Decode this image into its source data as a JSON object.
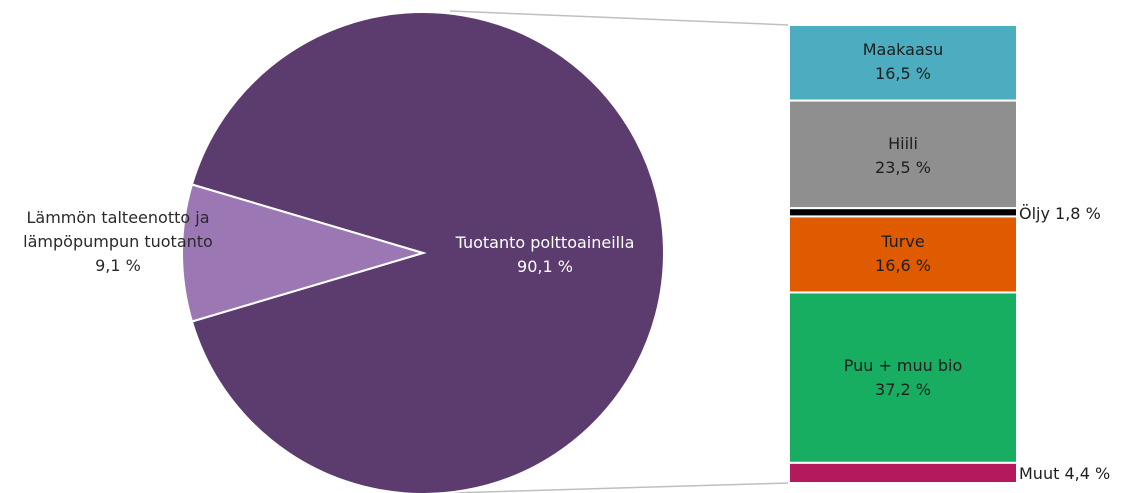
{
  "chart_data": [
    {
      "type": "pie",
      "slices": [
        {
          "label": "Tuotanto polttoaineilla",
          "value_text": "90,1 %",
          "value": 90.1,
          "color": "#5c3c6e"
        },
        {
          "label": "Lämmön talteenotto ja lämpöpumpun tuotanto",
          "label_lines": [
            "Lämmön talteenotto ja",
            "lämpöpumpun tuotanto"
          ],
          "value_text": "9,1 %",
          "value": 9.1,
          "color": "#9b78b3"
        }
      ]
    },
    {
      "type": "bar",
      "orientation": "stacked-vertical",
      "segments": [
        {
          "label": "Maakaasu",
          "value_text": "16,5 %",
          "value": 16.5,
          "color": "#4badbf"
        },
        {
          "label": "Hiili",
          "value_text": "23,5 %",
          "value": 23.5,
          "color": "#8f8f8f"
        },
        {
          "label": "Öljy",
          "value_text": "1,8 %",
          "value": 1.8,
          "color": "#000000",
          "outside_label": "Öljy 1,8 %"
        },
        {
          "label": "Turve",
          "value_text": "16,6 %",
          "value": 16.6,
          "color": "#e05a00"
        },
        {
          "label": "Puu + muu bio",
          "value_text": "37,2 %",
          "value": 37.2,
          "color": "#17ae62"
        },
        {
          "label": "Muut",
          "value_text": "4,4 %",
          "value": 4.4,
          "color": "#b3195c",
          "outside_label": "Muut 4,4 %"
        }
      ]
    }
  ]
}
